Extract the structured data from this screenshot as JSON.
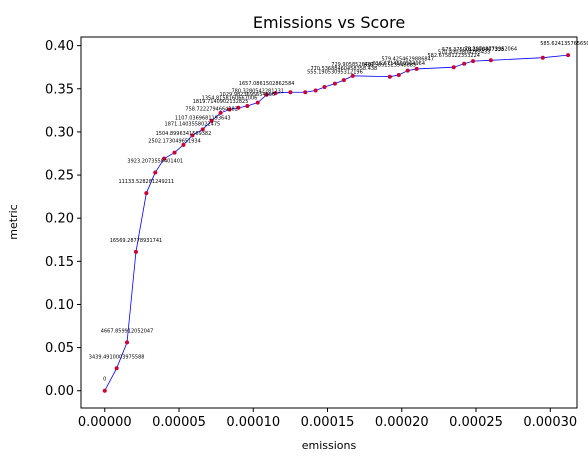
{
  "chart_data": {
    "type": "line",
    "title": "Emissions vs Score",
    "xlabel": "emissions",
    "ylabel": "metric",
    "xlim": [
      -1.6e-05,
      0.000318
    ],
    "ylim": [
      -0.02,
      0.41
    ],
    "xticks": [
      "0.00000",
      "0.00005",
      "0.00010",
      "0.00015",
      "0.00020",
      "0.00025",
      "0.00030"
    ],
    "xtick_values": [
      0,
      5e-05,
      0.0001,
      0.00015,
      0.0002,
      0.00025,
      0.0003
    ],
    "yticks": [
      "0.00",
      "0.05",
      "0.10",
      "0.15",
      "0.20",
      "0.25",
      "0.30",
      "0.35",
      "0.40"
    ],
    "ytick_values": [
      0,
      0.05,
      0.1,
      0.15,
      0.2,
      0.25,
      0.3,
      0.35,
      0.4
    ],
    "grid": false,
    "line_color": "#0000ff",
    "marker_color": "#cc0033",
    "points": [
      {
        "x": 0.0,
        "y": 0.0,
        "label": "0"
      },
      {
        "x": 8e-06,
        "y": 0.026,
        "label": "3439.4910003975588"
      },
      {
        "x": 1.5e-05,
        "y": 0.056,
        "label": "4667.859912052047"
      },
      {
        "x": 2.1e-05,
        "y": 0.161,
        "label": "16569.28778931741"
      },
      {
        "x": 2.8e-05,
        "y": 0.229,
        "label": "11133.528281249211"
      },
      {
        "x": 3.4e-05,
        "y": 0.253,
        "label": "3923.2073558401401"
      },
      {
        "x": 4e-05,
        "y": 0.269,
        "label": ""
      },
      {
        "x": 4.7e-05,
        "y": 0.276,
        "label": "2502.173049651934"
      },
      {
        "x": 5.3e-05,
        "y": 0.285,
        "label": "1504.8996341569382"
      },
      {
        "x": 5.9e-05,
        "y": 0.296,
        "label": "1871.1403558022475"
      },
      {
        "x": 6.6e-05,
        "y": 0.303,
        "label": "1107.0369681193643"
      },
      {
        "x": 7.2e-05,
        "y": 0.313,
        "label": "758.7222794664382"
      },
      {
        "x": 7.8e-05,
        "y": 0.322,
        "label": "1819.7140902132825"
      },
      {
        "x": 8.4e-05,
        "y": 0.326,
        "label": "1354.8158160667006"
      },
      {
        "x": 9e-05,
        "y": 0.328,
        "label": ""
      },
      {
        "x": 9.6e-05,
        "y": 0.33,
        "label": "1029.9823695654956"
      },
      {
        "x": 0.000103,
        "y": 0.334,
        "label": "780.3280542281231"
      },
      {
        "x": 0.000109,
        "y": 0.343,
        "label": "1657.0861502862584"
      },
      {
        "x": 0.000115,
        "y": 0.345,
        "label": ""
      },
      {
        "x": 0.000125,
        "y": 0.346,
        "label": ""
      },
      {
        "x": 0.000135,
        "y": 0.346,
        "label": ""
      },
      {
        "x": 0.000142,
        "y": 0.348,
        "label": ""
      },
      {
        "x": 0.000148,
        "y": 0.352,
        "label": ""
      },
      {
        "x": 0.000155,
        "y": 0.356,
        "label": "555.19053095312196"
      },
      {
        "x": 0.000161,
        "y": 0.36,
        "label": "770.53688460458358.438"
      },
      {
        "x": 0.000167,
        "y": 0.365,
        "label": "729.9058526481"
      },
      {
        "x": 0.000192,
        "y": 0.364,
        "label": "636.5891523948889"
      },
      {
        "x": 0.000198,
        "y": 0.366,
        "label": "616.6714560564964"
      },
      {
        "x": 0.000204,
        "y": 0.371,
        "label": "579.4254629886847"
      },
      {
        "x": 0.00021,
        "y": 0.373,
        "label": ""
      },
      {
        "x": 0.000235,
        "y": 0.375,
        "label": "582.6758122353224"
      },
      {
        "x": 0.000242,
        "y": 0.379,
        "label": "570.4303804265433"
      },
      {
        "x": 0.000248,
        "y": 0.382,
        "label": "578.3750012196467338"
      },
      {
        "x": 0.00026,
        "y": 0.383,
        "label": "78.39708773952064"
      },
      {
        "x": 0.000295,
        "y": 0.386,
        "label": ""
      },
      {
        "x": 0.000312,
        "y": 0.389,
        "label": "585.62413576565067"
      }
    ]
  }
}
